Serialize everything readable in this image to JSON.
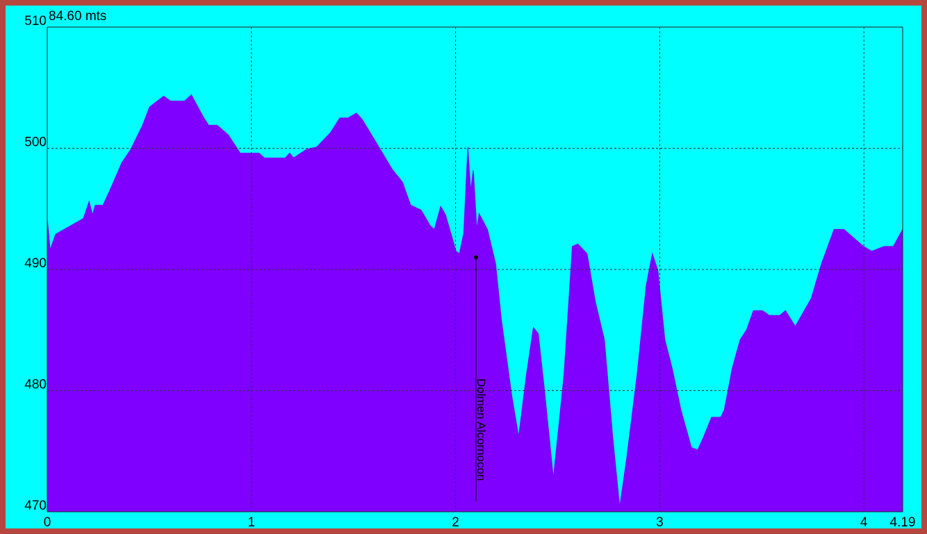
{
  "chart_data": {
    "type": "area",
    "title": "84.60 mts",
    "x": [
      0,
      0.014,
      0.041,
      0.177,
      0.205,
      0.222,
      0.235,
      0.273,
      0.314,
      0.365,
      0.409,
      0.467,
      0.501,
      0.57,
      0.604,
      0.672,
      0.706,
      0.767,
      0.791,
      0.832,
      0.887,
      0.945,
      1.037,
      1.064,
      1.166,
      1.187,
      1.207,
      1.269,
      1.32,
      1.388,
      1.433,
      1.473,
      1.514,
      1.542,
      1.61,
      1.688,
      1.74,
      1.78,
      1.831,
      1.876,
      1.896,
      1.927,
      1.951,
      2.002,
      2.019,
      2.04,
      2.06,
      2.074,
      2.087,
      2.104,
      2.115,
      2.128,
      2.156,
      2.196,
      2.224,
      2.275,
      2.309,
      2.347,
      2.381,
      2.405,
      2.435,
      2.479,
      2.507,
      2.531,
      2.572,
      2.599,
      2.644,
      2.685,
      2.729,
      2.77,
      2.804,
      2.838,
      2.889,
      2.934,
      2.964,
      2.991,
      3.025,
      3.06,
      3.104,
      3.155,
      3.186,
      3.213,
      3.254,
      3.299,
      3.316,
      3.356,
      3.394,
      3.425,
      3.459,
      3.503,
      3.537,
      3.588,
      3.616,
      3.664,
      3.742,
      3.793,
      3.854,
      3.902,
      3.998,
      4.038,
      4.1,
      4.144,
      4.19
    ],
    "values": [
      494.2,
      491.6,
      492.9,
      494.2,
      495.6,
      494.5,
      495.3,
      495.3,
      496.8,
      498.8,
      499.9,
      501.9,
      503.4,
      504.3,
      503.9,
      503.9,
      504.4,
      502.5,
      501.9,
      501.9,
      501.1,
      499.6,
      499.6,
      499.2,
      499.2,
      499.6,
      499.2,
      499.9,
      500.1,
      501.3,
      502.5,
      502.5,
      502.9,
      502.4,
      500.5,
      498.3,
      497.2,
      495.3,
      494.9,
      493.6,
      493.3,
      495.2,
      494.5,
      491.5,
      491.3,
      493.0,
      500.1,
      496.5,
      498.2,
      493.3,
      494.6,
      494.2,
      493.3,
      490.5,
      485.9,
      479.6,
      476.2,
      481.3,
      485.2,
      484.7,
      480.1,
      472.8,
      477.3,
      481.3,
      491.9,
      492.1,
      491.3,
      487.3,
      484.2,
      476.1,
      470.4,
      474.4,
      481.3,
      488.7,
      491.3,
      489.9,
      484.2,
      481.9,
      478.4,
      475.3,
      475.1,
      476.1,
      477.8,
      477.8,
      478.4,
      481.9,
      484.2,
      485.0,
      486.6,
      486.6,
      486.2,
      486.2,
      486.6,
      485.3,
      487.6,
      490.5,
      493.3,
      493.3,
      491.9,
      491.5,
      491.9,
      491.9,
      493.3
    ],
    "color": "#7f00ff",
    "background": "#00ffff",
    "xlim": [
      0,
      4.19
    ],
    "xticks": [
      0,
      1,
      2,
      3,
      4,
      4.19
    ],
    "ylim": [
      470,
      510
    ],
    "yticks": [
      470,
      480,
      490,
      500,
      510
    ],
    "grid": true,
    "annotations": [
      {
        "text": "Dolmen Alcornocon",
        "x": 2.1,
        "y": 491
      }
    ]
  }
}
